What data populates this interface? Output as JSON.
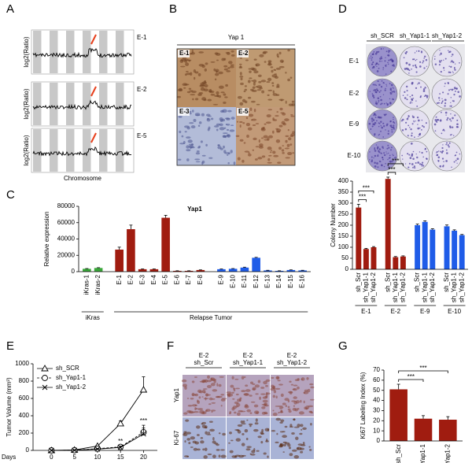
{
  "panel_labels": [
    "A",
    "B",
    "C",
    "D",
    "E",
    "F",
    "G"
  ],
  "cnv": {
    "y_label": "log2(Ratio)",
    "x_label": "Chromosome",
    "samples": [
      "E-1",
      "E-2",
      "E-5"
    ]
  },
  "ihc": {
    "title": "Yap 1",
    "samples": [
      "E-1",
      "E-2",
      "E-3",
      "E-5"
    ]
  },
  "plates": {
    "columns": [
      "sh_SCR",
      "sh_Yap1-1",
      "sh_Yap1-2"
    ],
    "rows": [
      "E-1",
      "E-2",
      "E-9",
      "E-10"
    ]
  },
  "ihc_knockdown": {
    "columns": [
      [
        "E-2",
        "sh_Scr"
      ],
      [
        "E-2",
        "sh_Yap1-1"
      ],
      [
        "E-2",
        "sh_Yap1-2"
      ]
    ],
    "rows": [
      "Yap1",
      "Ki-67"
    ]
  },
  "chart_data": [
    {
      "type": "bar",
      "title": "Yap1",
      "y_label": "Relative expression",
      "ylim": [
        0,
        80000
      ],
      "yticks": [
        0,
        20000,
        40000,
        60000,
        80000
      ],
      "groups": [
        {
          "name": "iKras",
          "categories": [
            "iKras-1",
            "iKras-2"
          ],
          "values": [
            3500,
            4500
          ],
          "errors": [
            300,
            400
          ],
          "colors": [
            "#3aa63a",
            "#3aa63a"
          ]
        },
        {
          "name": "Relapse Tumor",
          "categories": [
            "E-1",
            "E-2",
            "E-3",
            "E-4",
            "E-5",
            "E-6",
            "E-7",
            "E-8",
            "E-9",
            "E-10",
            "E-11",
            "E-12",
            "E-13",
            "E-14",
            "E-15",
            "E-16"
          ],
          "values": [
            27000,
            52000,
            3000,
            3000,
            66000,
            1000,
            1000,
            2000,
            3000,
            3500,
            5000,
            17000,
            1500,
            1000,
            2000,
            1500
          ],
          "errors": [
            3000,
            5000,
            300,
            300,
            3000,
            100,
            100,
            200,
            300,
            300,
            500,
            500,
            200,
            100,
            200,
            200
          ],
          "colors": [
            "#a01c10",
            "#a01c10",
            "#a01c10",
            "#a01c10",
            "#a01c10",
            "#a01c10",
            "#a01c10",
            "#a01c10",
            "#1f5ce8",
            "#1f5ce8",
            "#1f5ce8",
            "#1f5ce8",
            "#1f5ce8",
            "#1f5ce8",
            "#1f5ce8",
            "#1f5ce8"
          ]
        }
      ]
    },
    {
      "type": "bar",
      "y_label": "Colony Number",
      "ylim": [
        0,
        400
      ],
      "yticks": [
        0,
        50,
        100,
        150,
        200,
        250,
        300,
        350,
        400
      ],
      "groups": [
        {
          "name": "E-1",
          "categories": [
            "sh_Scr",
            "sh_Yap1-1",
            "sh_Yap1-2"
          ],
          "values": [
            280,
            92,
            100
          ],
          "errors": [
            15,
            3,
            3
          ],
          "color": "#a01c10"
        },
        {
          "name": "E-2",
          "categories": [
            "sh_Scr",
            "sh_Yap1-1",
            "sh_Yap1-2"
          ],
          "values": [
            410,
            55,
            58
          ],
          "errors": [
            8,
            3,
            3
          ],
          "color": "#a01c10"
        },
        {
          "name": "E-9",
          "categories": [
            "sh_Scr",
            "sh_Yap1-1",
            "sh_Yap1-2"
          ],
          "values": [
            200,
            215,
            180
          ],
          "errors": [
            5,
            5,
            4
          ],
          "color": "#1f5ce8"
        },
        {
          "name": "E-10",
          "categories": [
            "sh_Scr",
            "sh_Yap1-1",
            "sh_Yap1-2"
          ],
          "values": [
            195,
            175,
            155
          ],
          "errors": [
            6,
            4,
            3
          ],
          "color": "#1f5ce8"
        }
      ],
      "annotations": [
        {
          "text": "***",
          "group": 0,
          "pair": [
            0,
            1
          ]
        },
        {
          "text": "***",
          "group": 0,
          "pair": [
            0,
            2
          ]
        },
        {
          "text": "***",
          "group": 1,
          "pair": [
            0,
            1
          ]
        },
        {
          "text": "***",
          "group": 1,
          "pair": [
            0,
            2
          ]
        }
      ]
    },
    {
      "type": "line",
      "x_label": "Days",
      "y_label": "Tumor Volume (mm³)",
      "x": [
        0,
        5,
        10,
        15,
        20
      ],
      "xlim": [
        -4,
        23
      ],
      "xticks": [
        0,
        5,
        10,
        15,
        20
      ],
      "ylim": [
        0,
        1000
      ],
      "yticks": [
        0,
        200,
        400,
        600,
        800,
        1000
      ],
      "series": [
        {
          "name": "sh_SCR",
          "marker": "triangle",
          "dash": false,
          "values": [
            0,
            5,
            50,
            310,
            700
          ],
          "errors": [
            5,
            5,
            10,
            30,
            150
          ]
        },
        {
          "name": "sh_Yap1-1",
          "marker": "circle",
          "dash": true,
          "values": [
            0,
            2,
            20,
            40,
            210
          ],
          "errors": [
            5,
            5,
            10,
            15,
            80
          ]
        },
        {
          "name": "sh_Yap1-2",
          "marker": "x",
          "dash": false,
          "values": [
            0,
            2,
            15,
            35,
            190
          ],
          "errors": [
            5,
            5,
            8,
            15,
            70
          ]
        }
      ],
      "annotations": [
        {
          "text": "**",
          "x": 15
        },
        {
          "text": "***",
          "x": 20
        }
      ]
    },
    {
      "type": "bar",
      "y_label": "Ki67 Labeling Index (%)",
      "ylim": [
        0,
        70
      ],
      "yticks": [
        0,
        10,
        20,
        30,
        40,
        50,
        60,
        70
      ],
      "groups": [
        {
          "categories": [
            "sh_Scr",
            "sh_Yap1-1",
            "sh_Yap1-2"
          ],
          "values": [
            51,
            22,
            21
          ],
          "errors": [
            5,
            3,
            3
          ],
          "color": "#a01c10"
        }
      ],
      "annotations": [
        {
          "text": "***",
          "group": 0,
          "pair": [
            0,
            1
          ]
        },
        {
          "text": "***",
          "group": 0,
          "pair": [
            0,
            2
          ]
        }
      ]
    }
  ]
}
